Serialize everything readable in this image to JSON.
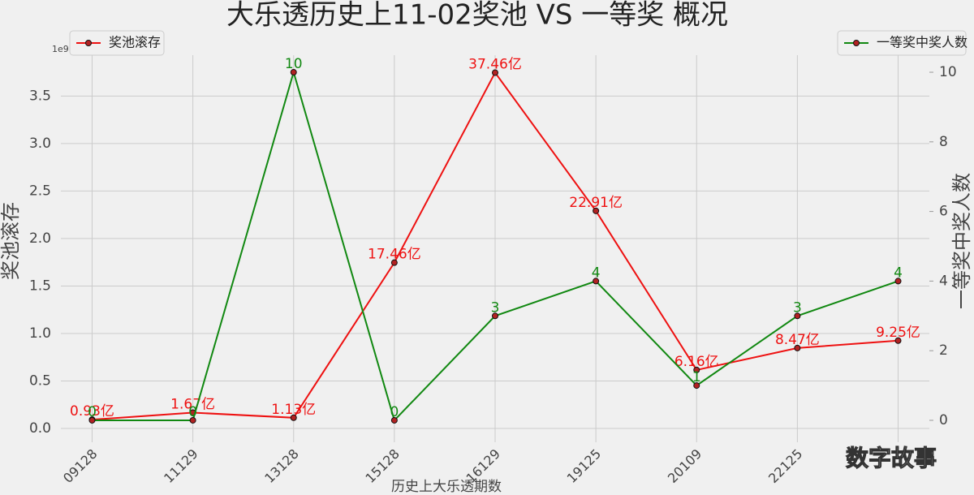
{
  "chart_data": {
    "type": "line",
    "title": "大乐透历史上11-02奖池 VS 一等奖 概况",
    "x_label": "历史上大乐透期数",
    "y_label": "奖池滚存",
    "y2_label": "一等奖中奖人数",
    "y_offset_label": "1e9",
    "watermark": "数字故事",
    "categories": [
      "09128",
      "11129",
      "13128",
      "15128",
      "16129",
      "19125",
      "20109",
      "22125",
      null
    ],
    "series": [
      {
        "name": "奖池滚存",
        "color": "#ee1111",
        "axis": "y",
        "legend": "upper left",
        "values": [
          93000000,
          167000000,
          113000000,
          1746000000,
          3746000000,
          2291000000,
          616000000,
          847000000,
          925000000
        ],
        "value_labels": [
          "0.93亿",
          "1.67亿",
          "1.13亿",
          "17.46亿",
          "37.46亿",
          "22.91亿",
          "6.16亿",
          "8.47亿",
          "9.25亿"
        ]
      },
      {
        "name": "一等奖中奖人数",
        "color": "#118811",
        "axis": "y2",
        "legend": "upper right",
        "values": [
          0,
          0,
          10,
          0,
          3,
          4,
          1,
          3,
          4
        ]
      }
    ],
    "ylim": [
      -145000000,
      3930000000
    ],
    "yticks": [
      {
        "value": 0,
        "label": "0.0"
      },
      {
        "value": 500000000,
        "label": "0.5"
      },
      {
        "value": 1000000000,
        "label": "1.0"
      },
      {
        "value": 1500000000,
        "label": "1.5"
      },
      {
        "value": 2000000000,
        "label": "2.0"
      },
      {
        "value": 2500000000,
        "label": "2.5"
      },
      {
        "value": 3000000000,
        "label": "3.0"
      },
      {
        "value": 3500000000,
        "label": "3.5"
      }
    ],
    "y2lim": [
      -0.63,
      10.49
    ],
    "y2ticks": [
      0,
      2,
      4,
      6,
      8,
      10
    ],
    "grid": true,
    "marker_color": "#b22222"
  }
}
